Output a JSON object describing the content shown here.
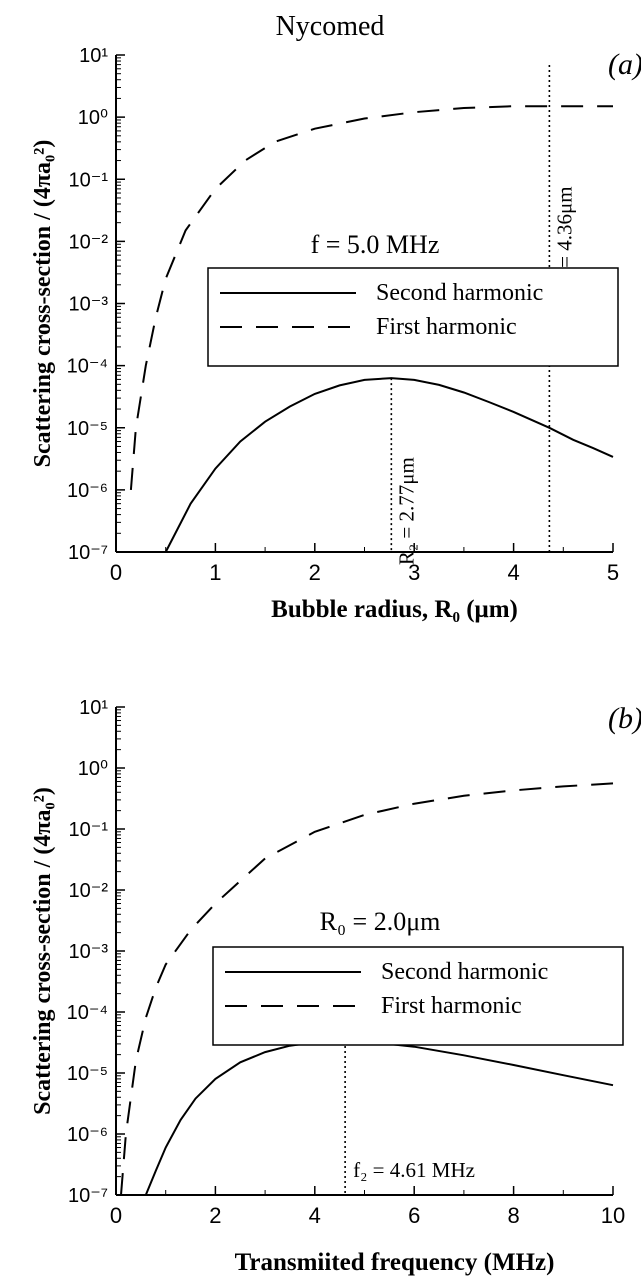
{
  "figure_title": "Nycomed",
  "chart_data": [
    {
      "type": "line",
      "panel_label": "(a)",
      "title": "",
      "xlabel": "Bubble radius,  R₀  (μm)",
      "ylabel": "Scattering cross-section / (4πa₀²)",
      "xscale": "linear",
      "yscale": "log",
      "xlim": [
        0,
        5
      ],
      "ylim": [
        1e-07,
        10
      ],
      "xticks": [
        "0",
        "1",
        "2",
        "3",
        "4",
        "5"
      ],
      "yticks": [
        "10⁻⁷",
        "10⁻⁶",
        "10⁻⁵",
        "10⁻⁴",
        "10⁻³",
        "10⁻²",
        "10⁻¹",
        "10⁰",
        "10¹"
      ],
      "annotation": "f = 5.0 MHz",
      "legend_position": "center",
      "series": [
        {
          "name": "Second harmonic",
          "style": "solid",
          "x": [
            0.5,
            0.75,
            1.0,
            1.25,
            1.5,
            1.75,
            2.0,
            2.25,
            2.5,
            2.77,
            3.0,
            3.25,
            3.5,
            3.75,
            4.0,
            4.36,
            4.6,
            4.8,
            5.0
          ],
          "y": [
            1e-07,
            6e-07,
            2.2e-06,
            6e-06,
            1.25e-05,
            2.2e-05,
            3.5e-05,
            4.8e-05,
            5.9e-05,
            6.3e-05,
            5.9e-05,
            4.9e-05,
            3.7e-05,
            2.6e-05,
            1.8e-05,
            1e-05,
            6.4e-06,
            4.7e-06,
            3.4e-06
          ]
        },
        {
          "name": "First harmonic",
          "style": "dashed",
          "x": [
            0.15,
            0.2,
            0.3,
            0.4,
            0.5,
            0.7,
            1.0,
            1.3,
            1.6,
            2.0,
            2.5,
            3.0,
            3.5,
            4.0,
            4.36,
            4.6,
            5.0
          ],
          "y": [
            1e-06,
            1e-05,
            0.0001,
            0.0006,
            0.0025,
            0.015,
            0.07,
            0.2,
            0.4,
            0.65,
            0.95,
            1.2,
            1.4,
            1.5,
            1.5,
            1.5,
            1.5
          ]
        }
      ],
      "reference_lines": [
        {
          "x": 2.77,
          "label": "R₂ = 2.77μm"
        },
        {
          "x": 4.36,
          "label": "R₁ = 4.36μm"
        }
      ]
    },
    {
      "type": "line",
      "panel_label": "(b)",
      "title": "",
      "xlabel": "Transmiited frequency (MHz)",
      "ylabel": "Scattering cross-section / (4πa₀²)",
      "xscale": "linear",
      "yscale": "log",
      "xlim": [
        0,
        10
      ],
      "ylim": [
        1e-07,
        10
      ],
      "xticks": [
        "0",
        "2",
        "4",
        "6",
        "8",
        "10"
      ],
      "yticks": [
        "10⁻⁷",
        "10⁻⁶",
        "10⁻⁵",
        "10⁻⁴",
        "10⁻³",
        "10⁻²",
        "10⁻¹",
        "10⁰",
        "10¹"
      ],
      "annotation": "R₀ = 2.0μm",
      "legend_position": "center",
      "series": [
        {
          "name": "Second harmonic",
          "style": "solid",
          "x": [
            0.6,
            0.8,
            1.0,
            1.3,
            1.6,
            2.0,
            2.5,
            3.0,
            3.5,
            4.0,
            4.61,
            5.0,
            6.0,
            7.0,
            8.0,
            9.0,
            10.0
          ],
          "y": [
            1e-07,
            2.5e-07,
            6e-07,
            1.7e-06,
            3.8e-06,
            8e-06,
            1.5e-05,
            2.2e-05,
            2.8e-05,
            3.2e-05,
            3.35e-05,
            3.3e-05,
            2.7e-05,
            1.95e-05,
            1.35e-05,
            9.2e-06,
            6.3e-06
          ]
        },
        {
          "name": "First harmonic",
          "style": "dashed",
          "x": [
            0.1,
            0.2,
            0.4,
            0.6,
            0.8,
            1.0,
            1.5,
            2.0,
            3.0,
            4.0,
            5.0,
            6.0,
            7.0,
            8.0,
            9.0,
            10.0
          ],
          "y": [
            1e-07,
            1e-06,
            1.6e-05,
            8e-05,
            0.00025,
            0.0006,
            0.0022,
            0.006,
            0.033,
            0.09,
            0.17,
            0.26,
            0.35,
            0.43,
            0.5,
            0.56
          ]
        }
      ],
      "reference_lines": [
        {
          "x": 4.61,
          "label": "f₂ = 4.61 MHz"
        }
      ]
    }
  ]
}
